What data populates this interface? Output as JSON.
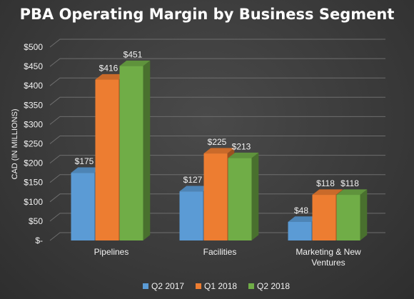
{
  "chart_data": {
    "type": "bar",
    "title": "PBA Operating Margin by Business Segment",
    "ylabel": "CAD (IN MILLIONS)",
    "xlabel": "",
    "ylim": [
      0,
      500
    ],
    "yticks": [
      0,
      50,
      100,
      150,
      200,
      250,
      300,
      350,
      400,
      450,
      500
    ],
    "ytick_labels": [
      "$-",
      "$50",
      "$100",
      "$150",
      "$200",
      "$250",
      "$300",
      "$350",
      "$400",
      "$450",
      "$500"
    ],
    "categories": [
      [
        "Pipelines"
      ],
      [
        "Facilities"
      ],
      [
        "Marketing & New",
        "Ventures"
      ]
    ],
    "series": [
      {
        "name": "Q2 2017",
        "values": [
          175,
          127,
          48
        ],
        "labels": [
          "$175",
          "$127",
          "$48"
        ],
        "color": "#5b9bd5"
      },
      {
        "name": "Q1 2018",
        "values": [
          416,
          225,
          118
        ],
        "labels": [
          "$416",
          "$225",
          "$118"
        ],
        "color": "#ed7d31"
      },
      {
        "name": "Q2 2018",
        "values": [
          451,
          213,
          118
        ],
        "labels": [
          "$451",
          "$213",
          "$118"
        ],
        "color": "#70ad47"
      }
    ],
    "grid": true,
    "legend": "bottom",
    "style": "3d-clustered"
  }
}
